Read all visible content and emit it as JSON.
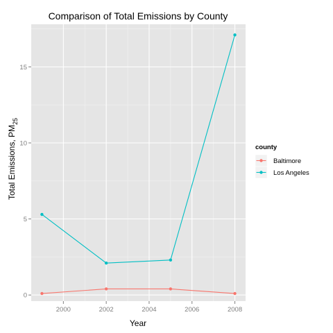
{
  "chart_data": {
    "type": "line",
    "title": "Comparison of Total Emissions by County",
    "xlabel": "Year",
    "ylabel_main": "Total Emissions, PM",
    "ylabel_sub": "25",
    "x": [
      1999,
      2002,
      2005,
      2008
    ],
    "xlim": [
      1998.5,
      2008.5
    ],
    "ylim": [
      -0.4,
      17.8
    ],
    "x_ticks": [
      2000,
      2002,
      2004,
      2006,
      2008
    ],
    "x_tick_labels": [
      "2000",
      "2002",
      "2004",
      "2006",
      "2008"
    ],
    "y_ticks": [
      0,
      5,
      10,
      15
    ],
    "y_tick_labels": [
      "0",
      "5",
      "10",
      "15"
    ],
    "grid": true,
    "legend": {
      "title": "county",
      "position": "right"
    },
    "series": [
      {
        "name": "Baltimore",
        "color": "#F8766D",
        "values": [
          0.1,
          0.4,
          0.4,
          0.1
        ]
      },
      {
        "name": "Los Angeles",
        "color": "#00BFC4",
        "values": [
          5.3,
          2.1,
          2.3,
          17.1
        ]
      }
    ]
  }
}
